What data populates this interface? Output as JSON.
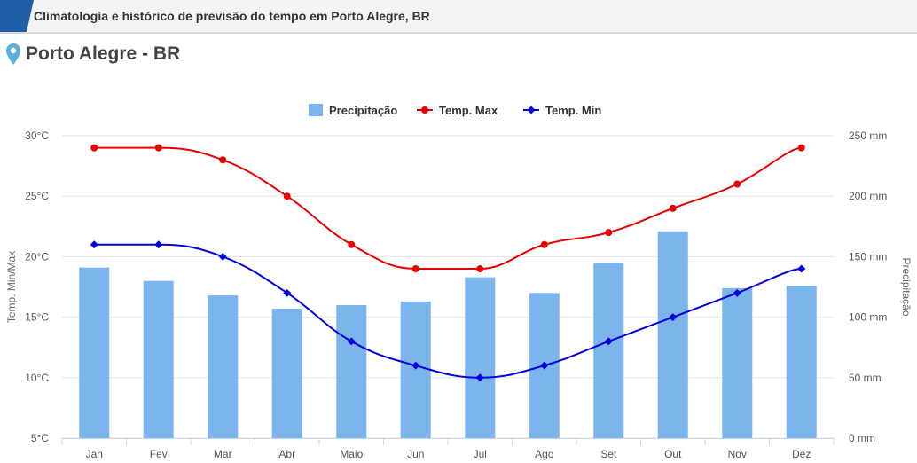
{
  "header": {
    "title": "Climatologia e histórico de previsão do tempo em Porto Alegre, BR",
    "accent_color": "#1f5fa8"
  },
  "location": {
    "name": "Porto Alegre - BR",
    "icon": "map-pin-icon",
    "icon_color": "#5aaee0"
  },
  "chart_data": {
    "type": "bar+line",
    "categories": [
      "Jan",
      "Fev",
      "Mar",
      "Abr",
      "Maio",
      "Jun",
      "Jul",
      "Ago",
      "Set",
      "Out",
      "Nov",
      "Dez"
    ],
    "series": [
      {
        "name": "Precipitação",
        "type": "bar",
        "axis": "right",
        "color": "#7cb5ec",
        "values": [
          141,
          130,
          118,
          107,
          110,
          113,
          133,
          120,
          145,
          171,
          124,
          126
        ]
      },
      {
        "name": "Temp. Max",
        "type": "line",
        "axis": "left",
        "color": "#e60000",
        "marker": "circle",
        "values": [
          29,
          29,
          28,
          25,
          21,
          19,
          19,
          21,
          22,
          24,
          26,
          29
        ]
      },
      {
        "name": "Temp. Min",
        "type": "line",
        "axis": "left",
        "color": "#0000dd",
        "marker": "diamond",
        "values": [
          21,
          21,
          20,
          17,
          13,
          11,
          10,
          11,
          13,
          15,
          17,
          19
        ]
      }
    ],
    "left_axis": {
      "title": "Temp. Min/Max",
      "min": 5,
      "max": 30,
      "ticks": [
        "5°C",
        "10°C",
        "15°C",
        "20°C",
        "25°C",
        "30°C"
      ]
    },
    "right_axis": {
      "title": "Precipitação",
      "min": 0,
      "max": 250,
      "ticks": [
        "0 mm",
        "50 mm",
        "100 mm",
        "150 mm",
        "200 mm",
        "250 mm"
      ]
    },
    "grid": true,
    "legend": "top-center"
  }
}
